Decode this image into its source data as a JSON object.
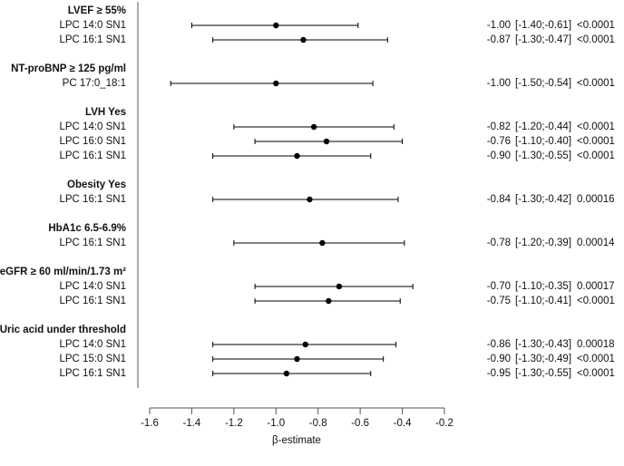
{
  "chart_data": {
    "type": "forest",
    "xlabel": "β-estimate",
    "xlim": [
      -1.6,
      -0.2
    ],
    "xticks": [
      -1.6,
      -1.4,
      -1.2,
      {
        "value": -1,
        "label": "-1.0"
      },
      -0.8,
      -0.6,
      -0.4,
      -0.2
    ],
    "color": "#000000",
    "groups": [
      {
        "name": "LVEF ≥ 55%",
        "labels": [
          "LPC 14:0 SN1",
          "LPC 16:1 SN1"
        ],
        "values": [
          -1,
          -0.87
        ],
        "value_labels": [
          "-1.00",
          "-0.87"
        ],
        "lower": [
          -1.4,
          -1.3
        ],
        "upper": [
          -0.61,
          -0.47
        ],
        "ci_labels": [
          "[-1.40;-0.61]",
          "[-1.30;-0.47]"
        ],
        "p_labels": [
          "<0.0001",
          "<0.0001"
        ]
      },
      {
        "name": "NT-proBNP ≥ 125 pg/ml",
        "labels": [
          "PC 17:0_18:1"
        ],
        "values": [
          -1
        ],
        "value_labels": [
          "-1.00"
        ],
        "lower": [
          -1.5
        ],
        "upper": [
          -0.54
        ],
        "ci_labels": [
          "[-1.50;-0.54]"
        ],
        "p_labels": [
          "<0.0001"
        ]
      },
      {
        "name": "LVH Yes",
        "labels": [
          "LPC 14:0 SN1",
          "LPC 16:0 SN1",
          "LPC 16:1 SN1"
        ],
        "values": [
          -0.82,
          -0.76,
          -0.9
        ],
        "value_labels": [
          "-0.82",
          "-0.76",
          "-0.90"
        ],
        "lower": [
          -1.2,
          -1.1,
          -1.3
        ],
        "upper": [
          -0.44,
          -0.4,
          -0.55
        ],
        "ci_labels": [
          "[-1.20;-0.44]",
          "[-1.10;-0.40]",
          "[-1.30;-0.55]"
        ],
        "p_labels": [
          "<0.0001",
          "<0.0001",
          "<0.0001"
        ]
      },
      {
        "name": "Obesity Yes",
        "labels": [
          "LPC 16:1 SN1"
        ],
        "values": [
          -0.84
        ],
        "value_labels": [
          "-0.84"
        ],
        "lower": [
          -1.3
        ],
        "upper": [
          -0.42
        ],
        "ci_labels": [
          "[-1.30;-0.42]"
        ],
        "p_labels": [
          "0.00016"
        ]
      },
      {
        "name": "HbA1c 6.5-6.9%",
        "labels": [
          "LPC 16:1 SN1"
        ],
        "values": [
          -0.78
        ],
        "value_labels": [
          "-0.78"
        ],
        "lower": [
          -1.2
        ],
        "upper": [
          -0.39
        ],
        "ci_labels": [
          "[-1.20;-0.39]"
        ],
        "p_labels": [
          "0.00014"
        ]
      },
      {
        "name": "eGFR ≥ 60 ml/min/1.73 m²",
        "labels": [
          "LPC 14:0 SN1",
          "LPC 16:1 SN1"
        ],
        "values": [
          -0.7,
          -0.75
        ],
        "value_labels": [
          "-0.70",
          "-0.75"
        ],
        "lower": [
          -1.1,
          -1.1
        ],
        "upper": [
          -0.35,
          -0.41
        ],
        "ci_labels": [
          "[-1.10;-0.35]",
          "[-1.10;-0.41]"
        ],
        "p_labels": [
          "0.00017",
          "<0.0001"
        ]
      },
      {
        "name": "Uric acid under threshold",
        "labels": [
          "LPC 14:0 SN1",
          "LPC 15:0 SN1",
          "LPC 16:1 SN1"
        ],
        "values": [
          -0.86,
          -0.9,
          -0.95
        ],
        "value_labels": [
          "-0.86",
          "-0.90",
          "-0.95"
        ],
        "lower": [
          -1.3,
          -1.3,
          -1.3
        ],
        "upper": [
          -0.43,
          -0.49,
          -0.55
        ],
        "ci_labels": [
          "[-1.30;-0.43]",
          "[-1.30;-0.49]",
          "[-1.30;-0.55]"
        ],
        "p_labels": [
          "0.00018",
          "<0.0001",
          "<0.0001"
        ]
      }
    ]
  }
}
